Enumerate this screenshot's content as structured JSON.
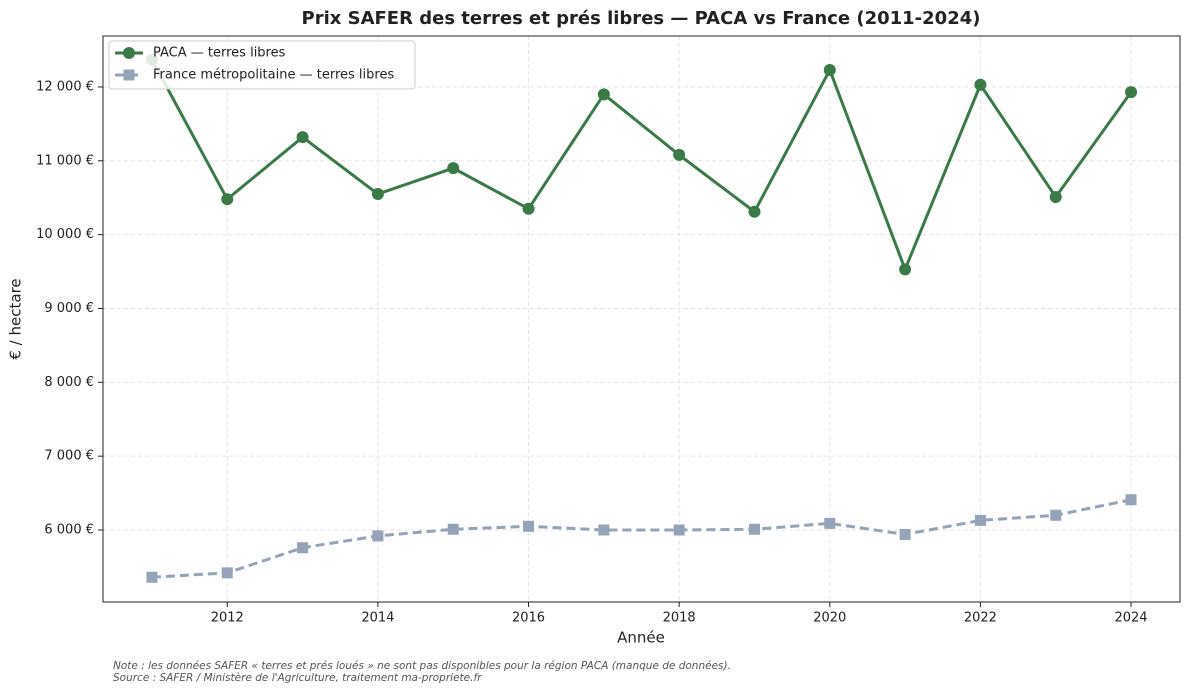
{
  "chart_data": {
    "type": "line",
    "title": "Prix SAFER des terres et prés libres — PACA vs France (2011-2024)",
    "xlabel": "Année",
    "ylabel": "€ / hectare",
    "x": [
      2011,
      2012,
      2013,
      2014,
      2015,
      2016,
      2017,
      2018,
      2019,
      2020,
      2021,
      2022,
      2023,
      2024
    ],
    "series": [
      {
        "name": "PACA — terres libres",
        "color": "#3a7a47",
        "marker": "circle",
        "dashed": false,
        "values": [
          12370,
          10480,
          11320,
          10550,
          10900,
          10350,
          11900,
          11080,
          10310,
          12230,
          9530,
          12030,
          10510,
          11930
        ]
      },
      {
        "name": "France métropolitaine — terres libres",
        "color": "#94a3b8",
        "marker": "square",
        "dashed": true,
        "values": [
          5360,
          5420,
          5760,
          5920,
          6010,
          6050,
          6000,
          6000,
          6010,
          6090,
          5940,
          6130,
          6200,
          6410
        ]
      }
    ],
    "xlim": [
      2010.35,
      2024.65
    ],
    "xticks": [
      2012,
      2014,
      2016,
      2018,
      2020,
      2022,
      2024
    ],
    "ylim": [
      5025,
      12690
    ],
    "yticks": [
      {
        "value": 6000,
        "label": "6 000 €"
      },
      {
        "value": 7000,
        "label": "7 000 €"
      },
      {
        "value": 8000,
        "label": "8 000 €"
      },
      {
        "value": 9000,
        "label": "9 000 €"
      },
      {
        "value": 10000,
        "label": "10 000 €"
      },
      {
        "value": 11000,
        "label": "11 000 €"
      },
      {
        "value": 12000,
        "label": "12 000 €"
      }
    ],
    "grid": true,
    "legend": "upper left",
    "notes": [
      "Note : les données SAFER « terres et prés loués » ne sont pas disponibles pour la région PACA (manque de données).",
      "Source : SAFER / Ministère de l'Agriculture, traitement ma-propriete.fr"
    ]
  }
}
